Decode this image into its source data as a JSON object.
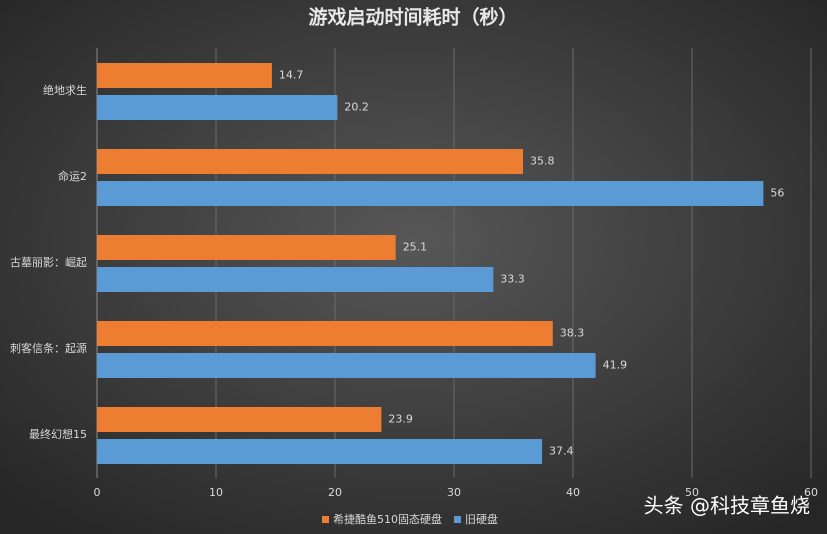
{
  "chart_data": {
    "type": "bar",
    "orientation": "horizontal",
    "title": "游戏启动时间耗时（秒）",
    "categories": [
      "绝地求生",
      "命运2",
      "古墓丽影：崛起",
      "刺客信条：起源",
      "最终幻想15"
    ],
    "series": [
      {
        "name": "希捷酷鱼510固态硬盘",
        "color": "#ed7d31",
        "values": [
          14.7,
          35.8,
          25.1,
          38.3,
          23.9
        ]
      },
      {
        "name": "旧硬盘",
        "color": "#5b9bd5",
        "values": [
          20.2,
          56,
          33.3,
          41.9,
          37.4
        ]
      }
    ],
    "xlim": [
      0,
      60
    ],
    "xticks": [
      0,
      10,
      20,
      30,
      40,
      50,
      60
    ],
    "grid": true,
    "legend": "bottom",
    "watermark": "头条 @科技章鱼烧"
  }
}
